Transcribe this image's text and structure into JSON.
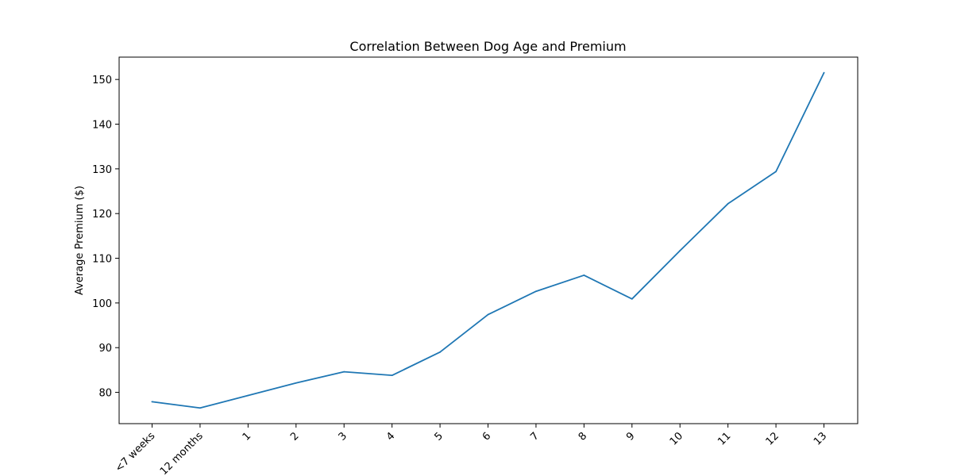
{
  "chart_data": {
    "type": "line",
    "title": "Correlation Between Dog Age and Premium",
    "xlabel": "",
    "ylabel": "Average Premium ($)",
    "categories": [
      "<7 weeks",
      "12 months",
      "1",
      "2",
      "3",
      "4",
      "5",
      "6",
      "7",
      "8",
      "9",
      "10",
      "11",
      "12",
      "13"
    ],
    "series": [
      {
        "color": "#1f77b4",
        "values": [
          77.9,
          76.5,
          79.3,
          82.1,
          84.6,
          83.8,
          89.0,
          97.4,
          102.6,
          106.2,
          100.9,
          111.7,
          122.2,
          129.4,
          151.5
        ]
      }
    ],
    "ylim": [
      73.0,
      155.0
    ],
    "yticks": [
      80,
      90,
      100,
      110,
      120,
      130,
      140,
      150
    ],
    "grid": false,
    "legend": "none"
  }
}
